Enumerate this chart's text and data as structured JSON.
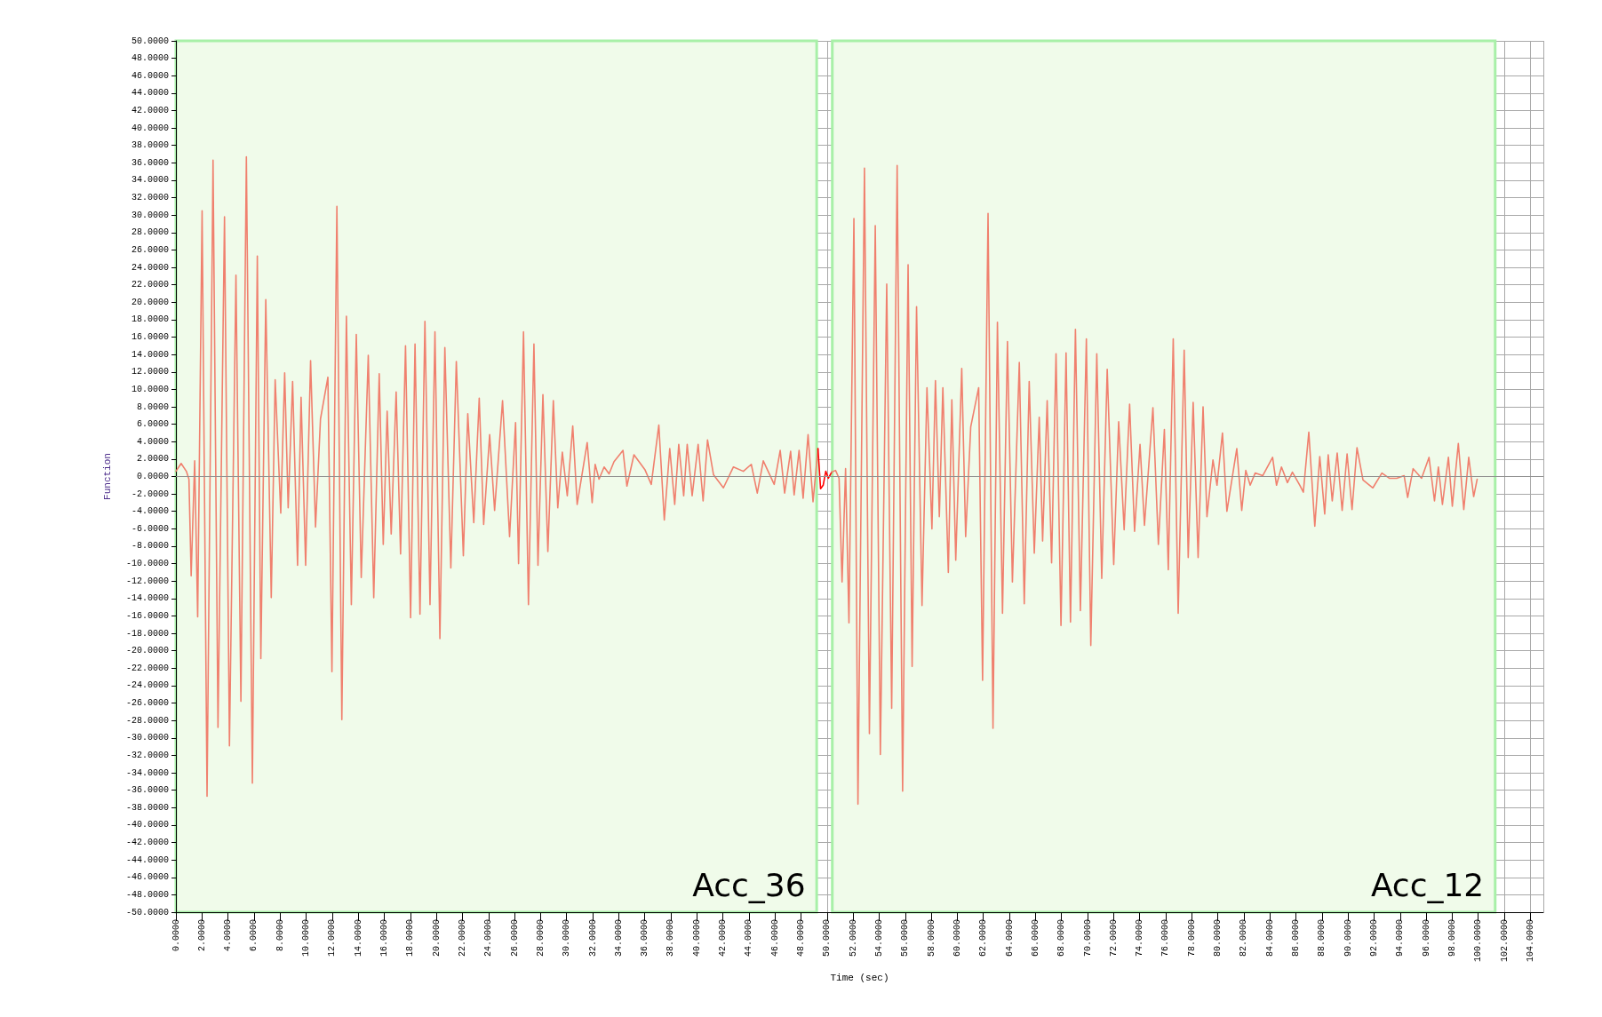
{
  "chart_data": {
    "type": "line",
    "xlabel": "Time (sec)",
    "ylabel": "Function",
    "xlim": [
      0,
      105
    ],
    "ylim": [
      -50,
      50
    ],
    "xticks": [
      {
        "value": 0,
        "label": "0.0000"
      },
      {
        "value": 2,
        "label": "2.0000"
      },
      {
        "value": 4,
        "label": "4.0000"
      },
      {
        "value": 6,
        "label": "6.0000"
      },
      {
        "value": 8,
        "label": "8.0000"
      },
      {
        "value": 10,
        "label": "10.0000"
      },
      {
        "value": 12,
        "label": "12.0000"
      },
      {
        "value": 14,
        "label": "14.0000"
      },
      {
        "value": 16,
        "label": "16.0000"
      },
      {
        "value": 18,
        "label": "18.0000"
      },
      {
        "value": 20,
        "label": "20.0000"
      },
      {
        "value": 22,
        "label": "22.0000"
      },
      {
        "value": 24,
        "label": "24.0000"
      },
      {
        "value": 26,
        "label": "26.0000"
      },
      {
        "value": 28,
        "label": "28.0000"
      },
      {
        "value": 30,
        "label": "30.0000"
      },
      {
        "value": 32,
        "label": "32.0000"
      },
      {
        "value": 34,
        "label": "34.0000"
      },
      {
        "value": 36,
        "label": "36.0000"
      },
      {
        "value": 38,
        "label": "38.0000"
      },
      {
        "value": 40,
        "label": "40.0000"
      },
      {
        "value": 42,
        "label": "42.0000"
      },
      {
        "value": 44,
        "label": "44.0000"
      },
      {
        "value": 46,
        "label": "46.0000"
      },
      {
        "value": 48,
        "label": "48.0000"
      },
      {
        "value": 50,
        "label": "50.0000"
      },
      {
        "value": 52,
        "label": "52.0000"
      },
      {
        "value": 54,
        "label": "54.0000"
      },
      {
        "value": 56,
        "label": "56.0000"
      },
      {
        "value": 58,
        "label": "58.0000"
      },
      {
        "value": 60,
        "label": "60.0000"
      },
      {
        "value": 62,
        "label": "62.0000"
      },
      {
        "value": 64,
        "label": "64.0000"
      },
      {
        "value": 66,
        "label": "66.0000"
      },
      {
        "value": 68,
        "label": "68.0000"
      },
      {
        "value": 70,
        "label": "70.0000"
      },
      {
        "value": 72,
        "label": "72.0000"
      },
      {
        "value": 74,
        "label": "74.0000"
      },
      {
        "value": 76,
        "label": "76.0000"
      },
      {
        "value": 78,
        "label": "78.0000"
      },
      {
        "value": 80,
        "label": "80.0000"
      },
      {
        "value": 82,
        "label": "82.0000"
      },
      {
        "value": 84,
        "label": "84.0000"
      },
      {
        "value": 86,
        "label": "86.0000"
      },
      {
        "value": 88,
        "label": "88.0000"
      },
      {
        "value": 90,
        "label": "90.0000"
      },
      {
        "value": 92,
        "label": "92.0000"
      },
      {
        "value": 94,
        "label": "94.0000"
      },
      {
        "value": 96,
        "label": "96.0000"
      },
      {
        "value": 98,
        "label": "98.0000"
      },
      {
        "value": 100,
        "label": "100.0000"
      },
      {
        "value": 102,
        "label": "102.0000"
      },
      {
        "value": 104,
        "label": "104.0000"
      }
    ],
    "yticks": [
      {
        "value": -50,
        "label": "-50.0000"
      },
      {
        "value": -48,
        "label": "-48.0000"
      },
      {
        "value": -46,
        "label": "-46.0000"
      },
      {
        "value": -44,
        "label": "-44.0000"
      },
      {
        "value": -42,
        "label": "-42.0000"
      },
      {
        "value": -40,
        "label": "-40.0000"
      },
      {
        "value": -38,
        "label": "-38.0000"
      },
      {
        "value": -36,
        "label": "-36.0000"
      },
      {
        "value": -34,
        "label": "-34.0000"
      },
      {
        "value": -32,
        "label": "-32.0000"
      },
      {
        "value": -30,
        "label": "-30.0000"
      },
      {
        "value": -28,
        "label": "-28.0000"
      },
      {
        "value": -26,
        "label": "-26.0000"
      },
      {
        "value": -24,
        "label": "-24.0000"
      },
      {
        "value": -22,
        "label": "-22.0000"
      },
      {
        "value": -20,
        "label": "-20.0000"
      },
      {
        "value": -18,
        "label": "-18.0000"
      },
      {
        "value": -16,
        "label": "-16.0000"
      },
      {
        "value": -14,
        "label": "-14.0000"
      },
      {
        "value": -12,
        "label": "-12.0000"
      },
      {
        "value": -10,
        "label": "-10.0000"
      },
      {
        "value": -8,
        "label": "-8.0000"
      },
      {
        "value": -6,
        "label": "-6.0000"
      },
      {
        "value": -4,
        "label": "-4.0000"
      },
      {
        "value": -2,
        "label": "-2.0000"
      },
      {
        "value": 0,
        "label": "0.0000"
      },
      {
        "value": 2,
        "label": "2.0000"
      },
      {
        "value": 4,
        "label": "4.0000"
      },
      {
        "value": 6,
        "label": "6.0000"
      },
      {
        "value": 8,
        "label": "8.0000"
      },
      {
        "value": 10,
        "label": "10.0000"
      },
      {
        "value": 12,
        "label": "12.0000"
      },
      {
        "value": 14,
        "label": "14.0000"
      },
      {
        "value": 16,
        "label": "16.0000"
      },
      {
        "value": 18,
        "label": "18.0000"
      },
      {
        "value": 20,
        "label": "20.0000"
      },
      {
        "value": 22,
        "label": "22.0000"
      },
      {
        "value": 24,
        "label": "24.0000"
      },
      {
        "value": 26,
        "label": "26.0000"
      },
      {
        "value": 28,
        "label": "28.0000"
      },
      {
        "value": 30,
        "label": "30.0000"
      },
      {
        "value": 32,
        "label": "32.0000"
      },
      {
        "value": 34,
        "label": "34.0000"
      },
      {
        "value": 36,
        "label": "36.0000"
      },
      {
        "value": 38,
        "label": "38.0000"
      },
      {
        "value": 40,
        "label": "40.0000"
      },
      {
        "value": 42,
        "label": "42.0000"
      },
      {
        "value": 44,
        "label": "44.0000"
      },
      {
        "value": 46,
        "label": "46.0000"
      },
      {
        "value": 48,
        "label": "48.0000"
      },
      {
        "value": 50,
        "label": "50.0000"
      }
    ],
    "grid": true,
    "marker": "none",
    "line_style": "solid",
    "ref_lines": [
      {
        "axis": "y",
        "value": 0,
        "color": "#909090"
      }
    ],
    "bands": [
      {
        "axis": "x",
        "from": 0,
        "to": 49.2,
        "label": "Acc_36",
        "color": "#f0fbea"
      },
      {
        "axis": "x",
        "from": 50.4,
        "to": 101.3,
        "label": "Acc_12",
        "color": "#f0fbea"
      }
    ],
    "series": [
      {
        "color": "#f0806e",
        "x": [
          0.0,
          0.4,
          0.8,
          1.0,
          1.17,
          1.44,
          1.67,
          2.01,
          2.39,
          2.85,
          3.23,
          3.73,
          4.11,
          4.61,
          4.99,
          5.41,
          5.87,
          6.25,
          6.52,
          6.9,
          7.32,
          7.62,
          8.05,
          8.35,
          8.62,
          8.96,
          9.34,
          9.61,
          9.96,
          10.34,
          10.72,
          11.1,
          11.67,
          11.98,
          12.36,
          12.74,
          13.09,
          13.47,
          13.85,
          14.23,
          14.77,
          15.19,
          15.61,
          15.92,
          16.22,
          16.53,
          16.91,
          17.25,
          17.63,
          18.02,
          18.36,
          18.74,
          19.12,
          19.51,
          19.89,
          20.27,
          20.65,
          21.11,
          21.53,
          22.07,
          22.41,
          22.87,
          23.29,
          23.63,
          24.09,
          24.47,
          25.08,
          25.62,
          26.08,
          26.31,
          26.69,
          27.07,
          27.49,
          27.8,
          28.18,
          28.56,
          28.98,
          29.32,
          29.67,
          30.05,
          30.47,
          30.81,
          31.58,
          31.96,
          32.19,
          32.49,
          32.88,
          33.26,
          33.64,
          34.33,
          34.63,
          35.17,
          36.01,
          36.5,
          37.08,
          37.5,
          37.92,
          38.3,
          38.61,
          38.99,
          39.26,
          39.64,
          40.1,
          40.48,
          40.82,
          41.28,
          42.04,
          42.81,
          43.57,
          44.18,
          44.64,
          45.1,
          45.94,
          46.4,
          46.74,
          47.2,
          47.47,
          47.85,
          48.16,
          48.54,
          48.92,
          49.3
        ],
        "values": [
          0.6,
          1.5,
          0.6,
          -0.3,
          -11.4,
          1.8,
          -16.1,
          30.5,
          -36.7,
          36.3,
          -28.8,
          29.8,
          -30.9,
          23.1,
          -25.8,
          36.7,
          -35.2,
          25.3,
          -20.9,
          20.3,
          -13.9,
          11.1,
          -4.2,
          11.9,
          -3.6,
          10.9,
          -10.2,
          9.1,
          -10.2,
          13.3,
          -5.8,
          6.6,
          11.4,
          -22.4,
          31.0,
          -27.9,
          18.4,
          -14.7,
          16.3,
          -11.6,
          13.9,
          -13.9,
          11.8,
          -7.8,
          7.5,
          -6.6,
          9.7,
          -8.9,
          15.0,
          -16.2,
          15.2,
          -15.8,
          17.8,
          -14.7,
          16.6,
          -18.6,
          14.8,
          -10.5,
          13.2,
          -9.1,
          7.2,
          -5.3,
          9.0,
          -5.5,
          4.8,
          -3.9,
          8.7,
          -6.9,
          6.2,
          -10.0,
          16.6,
          -14.7,
          15.2,
          -10.2,
          9.4,
          -8.6,
          8.7,
          -3.6,
          2.8,
          -2.2,
          5.8,
          -3.2,
          3.9,
          -3.0,
          1.4,
          -0.3,
          1.1,
          0.3,
          1.7,
          3.0,
          -1.1,
          2.5,
          0.8,
          -0.9,
          5.9,
          -5.0,
          3.2,
          -3.2,
          3.7,
          -2.2,
          3.7,
          -2.2,
          3.7,
          -2.8,
          4.2,
          0.2,
          -1.3,
          1.1,
          0.6,
          1.4,
          -1.9,
          1.8,
          -0.9,
          3.0,
          -1.9,
          2.9,
          -2.1,
          3.0,
          -2.5,
          4.8,
          -2.9,
          3.2
        ]
      },
      {
        "color": "#ff0000",
        "x": [
          49.3,
          49.5,
          49.7,
          49.9,
          50.1,
          50.35
        ],
        "values": [
          3.2,
          -1.4,
          -1.0,
          0.6,
          -0.2,
          0.5
        ]
      },
      {
        "color": "#f0806e",
        "x": [
          50.35,
          50.65,
          50.92,
          51.15,
          51.42,
          51.68,
          52.06,
          52.37,
          52.87,
          53.25,
          53.7,
          54.09,
          54.58,
          54.96,
          55.38,
          55.8,
          56.22,
          56.53,
          56.87,
          57.29,
          57.67,
          58.05,
          58.32,
          58.62,
          58.89,
          59.31,
          59.58,
          59.88,
          60.34,
          60.64,
          61.03,
          61.64,
          61.94,
          62.36,
          62.74,
          63.08,
          63.47,
          63.85,
          64.23,
          64.76,
          65.14,
          65.52,
          65.91,
          66.29,
          66.55,
          66.9,
          67.24,
          67.58,
          67.96,
          68.35,
          68.69,
          69.07,
          69.45,
          69.91,
          70.25,
          70.71,
          71.09,
          71.51,
          72.01,
          72.39,
          72.81,
          73.23,
          73.61,
          74.03,
          74.37,
          75.02,
          75.44,
          75.9,
          76.2,
          76.58,
          76.96,
          77.42,
          77.73,
          78.11,
          78.49,
          78.87,
          79.17,
          79.63,
          79.94,
          80.36,
          80.7,
          81.46,
          81.84,
          82.15,
          82.49,
          82.87,
          83.45,
          84.21,
          84.51,
          84.89,
          85.35,
          85.73,
          86.3,
          86.57,
          86.99,
          87.45,
          87.83,
          88.21,
          88.48,
          88.79,
          89.17,
          89.55,
          89.93,
          90.31,
          90.69,
          91.15,
          91.91,
          92.6,
          93.17,
          93.74,
          94.31,
          94.58,
          95.0,
          95.65,
          96.22,
          96.64,
          96.94,
          97.25,
          97.71,
          98.01,
          98.47,
          98.89,
          99.27,
          99.65,
          99.92
        ],
        "values": [
          0.5,
          0.7,
          -0.2,
          -12.1,
          0.9,
          -16.8,
          29.6,
          -37.6,
          35.4,
          -29.5,
          28.8,
          -31.9,
          22.1,
          -26.6,
          35.7,
          -36.1,
          24.3,
          -21.8,
          19.5,
          -14.8,
          10.2,
          -6.0,
          11.0,
          -4.6,
          10.2,
          -11.0,
          8.8,
          -9.6,
          12.4,
          -6.9,
          5.7,
          10.2,
          -23.4,
          30.2,
          -28.9,
          17.7,
          -15.7,
          15.5,
          -12.1,
          13.1,
          -14.6,
          10.9,
          -8.8,
          6.8,
          -7.4,
          8.7,
          -9.9,
          14.1,
          -17.1,
          14.2,
          -16.7,
          16.9,
          -15.4,
          15.8,
          -19.4,
          14.1,
          -11.7,
          12.3,
          -10.1,
          6.3,
          -6.1,
          8.3,
          -6.3,
          3.7,
          -5.6,
          7.9,
          -7.8,
          5.4,
          -10.7,
          15.8,
          -15.7,
          14.5,
          -9.3,
          8.5,
          -9.3,
          8.0,
          -4.6,
          1.9,
          -1.0,
          5.0,
          -4.0,
          3.2,
          -3.9,
          0.7,
          -1.0,
          0.4,
          0.1,
          2.2,
          -1.0,
          1.1,
          -0.7,
          0.5,
          -1.0,
          -1.8,
          5.1,
          -5.7,
          2.3,
          -4.3,
          2.5,
          -2.8,
          2.7,
          -3.9,
          2.6,
          -3.8,
          3.3,
          -0.4,
          -1.3,
          0.4,
          -0.2,
          -0.2,
          0.1,
          -2.4,
          0.9,
          -0.2,
          2.2,
          -2.8,
          1.1,
          -3.2,
          2.2,
          -3.4,
          3.8,
          -3.8,
          2.2,
          -2.3,
          -0.3
        ]
      }
    ]
  }
}
